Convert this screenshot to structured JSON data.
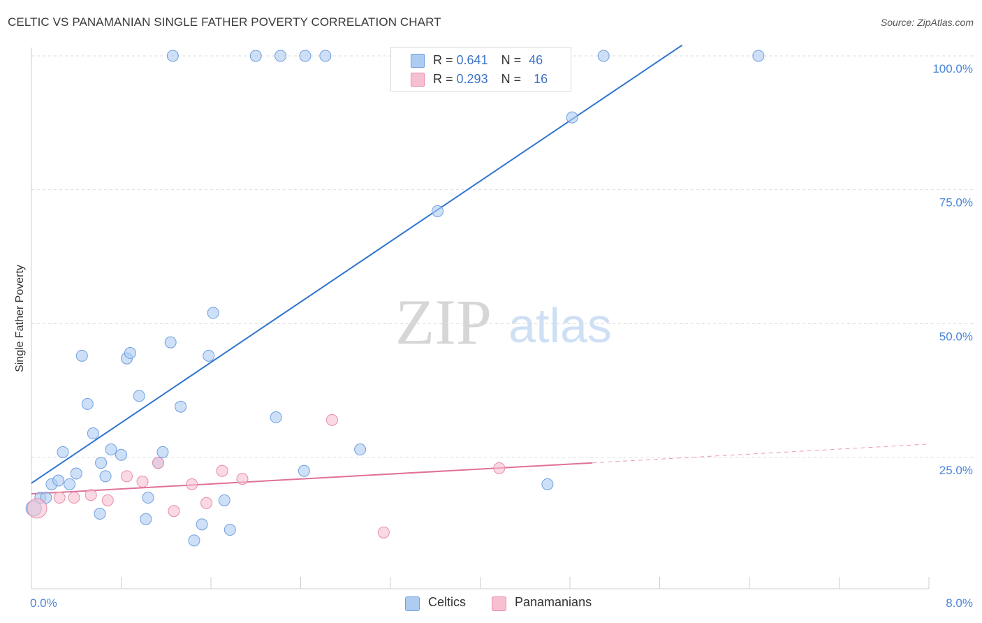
{
  "header": {
    "title": "CELTIC VS PANAMANIAN SINGLE FATHER POVERTY CORRELATION CHART",
    "source": "Source: ZipAtlas.com"
  },
  "watermark": {
    "zip": "ZIP",
    "atlas": "atlas"
  },
  "legend_top": {
    "row1": {
      "r_label": "R =",
      "r_value": "0.641",
      "n_label": "N =",
      "n_value": "46"
    },
    "row2": {
      "r_label": "R =",
      "r_value": "0.293",
      "n_label": "N =",
      "n_value": "16"
    }
  },
  "legend_bottom": {
    "series1": "Celtics",
    "series2": "Panamanians"
  },
  "colors": {
    "celtic_fill": "#aecbf2",
    "celtic_stroke": "#6f9fde",
    "celtic_line": "#2f74cf",
    "panam_fill": "#f7c0d0",
    "panam_stroke": "#e98ca9",
    "panam_line": "#e0709a",
    "tick_text": "#4a86d8",
    "grid": "#dcdcdc"
  },
  "chart_data": {
    "type": "scatter",
    "title": "CELTIC VS PANAMANIAN SINGLE FATHER POVERTY CORRELATION CHART",
    "xlabel": "",
    "ylabel": "Single Father Poverty",
    "xlim": [
      0,
      8
    ],
    "ylim": [
      0,
      102
    ],
    "x_tick_labels": [
      "0.0%",
      "8.0%"
    ],
    "y_ticks": [
      25,
      50,
      75,
      100
    ],
    "y_tick_labels": [
      "25.0%",
      "50.0%",
      "75.0%",
      "100.0%"
    ],
    "grid": true,
    "legend_placement": "top-center",
    "series": [
      {
        "name": "Celtics",
        "r": 0.641,
        "n": 46,
        "trend": {
          "x": [
            0.0,
            5.8
          ],
          "y": [
            20.2,
            102.0
          ]
        },
        "points": [
          [
            0.02,
            15.5
          ],
          [
            0.08,
            17.5
          ],
          [
            0.13,
            17.5
          ],
          [
            0.18,
            20.0
          ],
          [
            0.24,
            20.7
          ],
          [
            0.28,
            26.0
          ],
          [
            0.34,
            20.0
          ],
          [
            0.4,
            22.0
          ],
          [
            0.45,
            44.0
          ],
          [
            0.5,
            35.0
          ],
          [
            0.55,
            29.5
          ],
          [
            0.61,
            14.5
          ],
          [
            0.62,
            24.0
          ],
          [
            0.66,
            21.5
          ],
          [
            0.71,
            26.5
          ],
          [
            0.8,
            25.5
          ],
          [
            0.85,
            43.5
          ],
          [
            0.88,
            44.5
          ],
          [
            0.96,
            36.5
          ],
          [
            1.02,
            13.5
          ],
          [
            1.04,
            17.5
          ],
          [
            1.13,
            24.0
          ],
          [
            1.17,
            26.0
          ],
          [
            1.24,
            46.5
          ],
          [
            1.26,
            100.0
          ],
          [
            1.33,
            34.5
          ],
          [
            1.45,
            9.5
          ],
          [
            1.52,
            12.5
          ],
          [
            1.58,
            44.0
          ],
          [
            1.62,
            52.0
          ],
          [
            1.72,
            17.0
          ],
          [
            1.77,
            11.5
          ],
          [
            2.0,
            100.0
          ],
          [
            2.18,
            32.5
          ],
          [
            2.22,
            100.0
          ],
          [
            2.43,
            22.5
          ],
          [
            2.44,
            100.0
          ],
          [
            2.62,
            100.0
          ],
          [
            2.93,
            26.5
          ],
          [
            3.3,
            100.0
          ],
          [
            3.62,
            71.0
          ],
          [
            4.17,
            100.0
          ],
          [
            4.6,
            20.0
          ],
          [
            4.82,
            88.5
          ],
          [
            5.1,
            100.0
          ],
          [
            6.48,
            100.0
          ]
        ]
      },
      {
        "name": "Panamanians",
        "r": 0.293,
        "n": 16,
        "trend": {
          "x": [
            0.0,
            5.0
          ],
          "y": [
            18.2,
            24.0
          ],
          "dashed_to": [
            8.0,
            27.5
          ]
        },
        "points": [
          [
            0.05,
            15.5
          ],
          [
            0.25,
            17.5
          ],
          [
            0.38,
            17.5
          ],
          [
            0.53,
            18.0
          ],
          [
            0.68,
            17.0
          ],
          [
            0.85,
            21.5
          ],
          [
            0.99,
            20.5
          ],
          [
            1.13,
            24.0
          ],
          [
            1.27,
            15.0
          ],
          [
            1.43,
            20.0
          ],
          [
            1.56,
            16.5
          ],
          [
            1.7,
            22.5
          ],
          [
            1.88,
            21.0
          ],
          [
            2.68,
            32.0
          ],
          [
            3.14,
            11.0
          ],
          [
            4.17,
            23.0
          ]
        ]
      }
    ]
  }
}
